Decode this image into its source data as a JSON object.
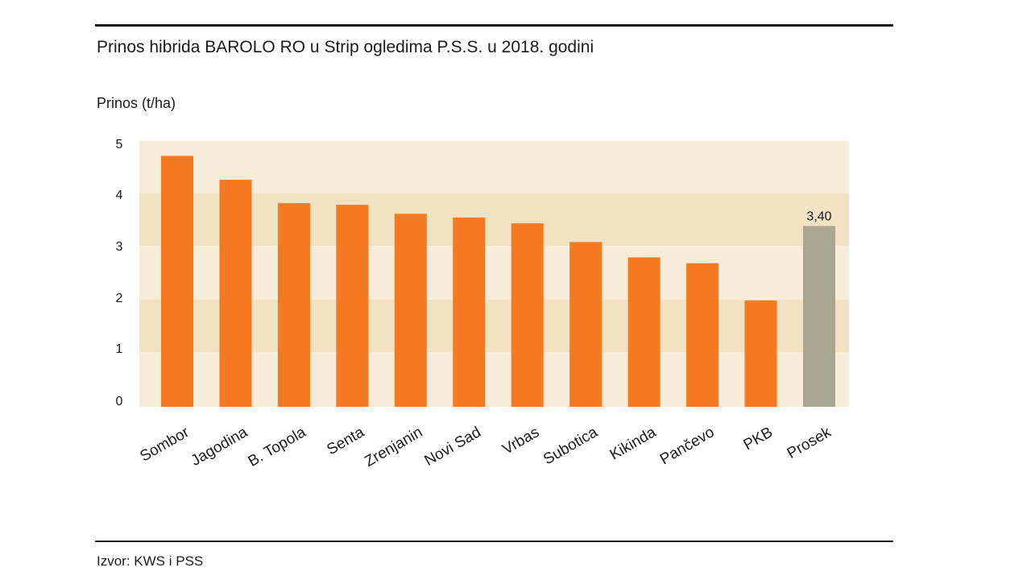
{
  "title": "Prinos hibrida BAROLO RO u Strip ogledima P.S.S. u 2018. godini",
  "source": "Izvor: KWS i PSS",
  "colors": {
    "bar": "#f47920",
    "average_bar": "#a9a58f",
    "band_light": "#f7ecd7",
    "band_dark": "#f1e2c3"
  },
  "chart_data": {
    "type": "bar",
    "title": "Prinos hibrida BAROLO RO u Strip ogledima P.S.S. u 2018. godini",
    "xlabel": "",
    "ylabel": "Prinos (t/ha)",
    "ylim": [
      0,
      5
    ],
    "yticks": [
      "0",
      "1",
      "2",
      "3",
      "4",
      "5"
    ],
    "categories": [
      "Sombor",
      "Jagodina",
      "B. Topola",
      "Senta",
      "Zrenjanin",
      "Novi Sad",
      "Vrbas",
      "Subotica",
      "Kikinda",
      "Pančevo",
      "PKB",
      "Prosek"
    ],
    "values": [
      4.72,
      4.27,
      3.83,
      3.8,
      3.63,
      3.56,
      3.45,
      3.1,
      2.81,
      2.7,
      2.0,
      3.4
    ],
    "highlight_category": "Prosek",
    "data_labels": [
      {
        "category": "Prosek",
        "text": "3,40"
      }
    ],
    "grid": "alternating horizontal bands",
    "legend": "none"
  }
}
